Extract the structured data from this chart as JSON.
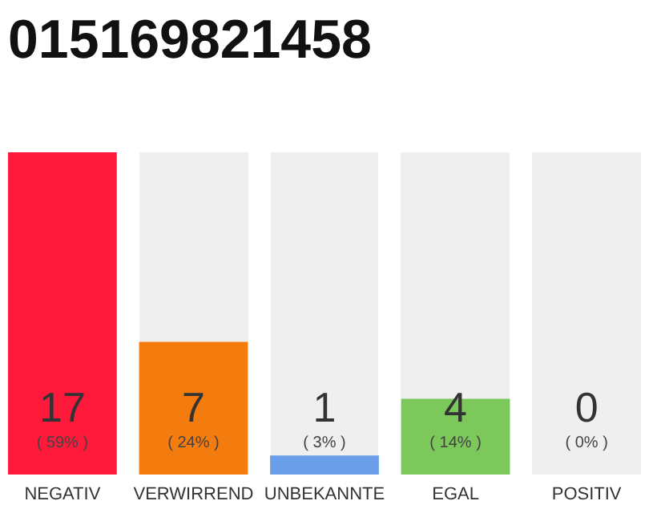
{
  "chart_data": {
    "type": "bar",
    "title": "015169821458",
    "categories": [
      "NEGATIV",
      "VERWIRREND",
      "UNBEKANNTE",
      "EGAL",
      "POSITIV"
    ],
    "values": [
      17,
      7,
      1,
      4,
      0
    ],
    "colors": [
      "#ff1a3c",
      "#f47c0f",
      "#6a9ee8",
      "#7cc85a",
      "#b0b0b0"
    ],
    "ylim": [
      0,
      17
    ],
    "data_labels": true,
    "annotations": [
      "( 59% )",
      "( 24% )",
      "( 3% )",
      "( 14% )",
      "( 0% )"
    ]
  }
}
